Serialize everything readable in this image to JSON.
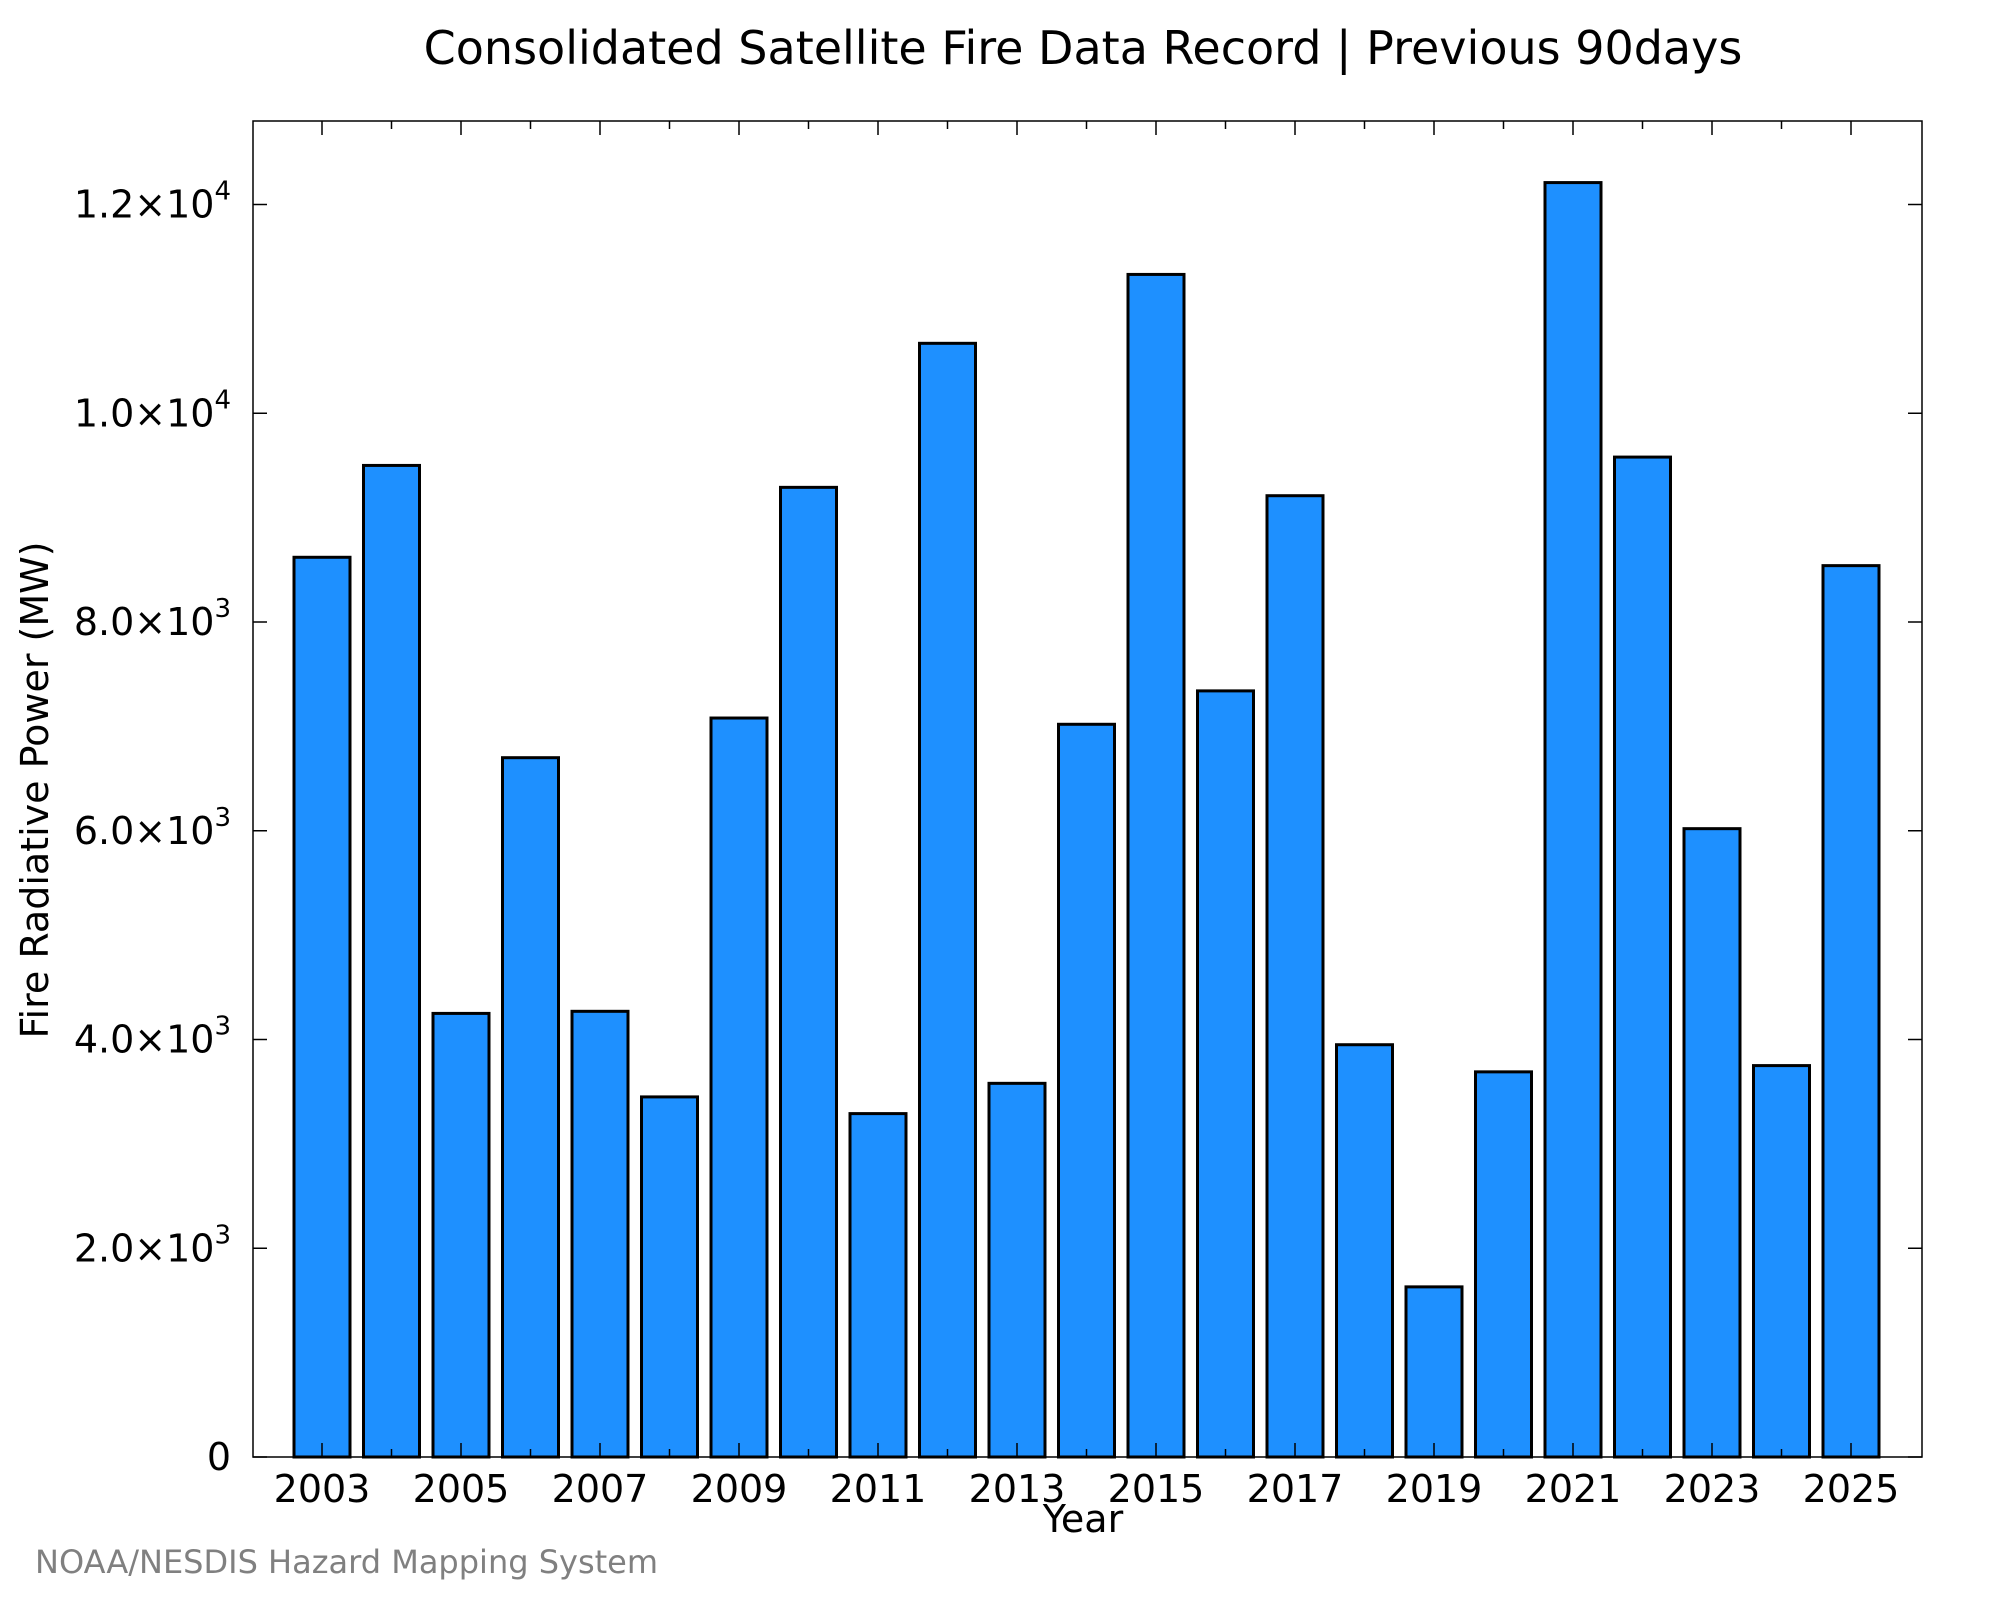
{
  "chart_data": {
    "type": "bar",
    "title": "Consolidated Satellite Fire Data Record | Previous 90days",
    "xlabel": "Year",
    "ylabel": "Fire Radiative Power (MW)",
    "categories": [
      "2003",
      "2004",
      "2005",
      "2006",
      "2007",
      "2008",
      "2009",
      "2010",
      "2011",
      "2012",
      "2013",
      "2014",
      "2015",
      "2016",
      "2017",
      "2018",
      "2019",
      "2020",
      "2021",
      "2022",
      "2023",
      "2024",
      "2025"
    ],
    "values": [
      8620,
      9500,
      4250,
      6700,
      4270,
      3450,
      7080,
      9290,
      3290,
      10670,
      3580,
      7020,
      11330,
      7340,
      9210,
      3950,
      1630,
      3690,
      12210,
      9580,
      6020,
      3750,
      8540
    ],
    "ylim": [
      0,
      12800
    ],
    "yticks": [
      {
        "value": 0,
        "mantissa": "0",
        "exp": ""
      },
      {
        "value": 2000,
        "mantissa": "2.0×10",
        "exp": "3"
      },
      {
        "value": 4000,
        "mantissa": "4.0×10",
        "exp": "3"
      },
      {
        "value": 6000,
        "mantissa": "6.0×10",
        "exp": "3"
      },
      {
        "value": 8000,
        "mantissa": "8.0×10",
        "exp": "3"
      },
      {
        "value": 10000,
        "mantissa": "1.0×10",
        "exp": "4"
      },
      {
        "value": 12000,
        "mantissa": "1.2×10",
        "exp": "4"
      }
    ],
    "xtick_labels": [
      "2003",
      "2005",
      "2007",
      "2009",
      "2011",
      "2013",
      "2015",
      "2017",
      "2019",
      "2021",
      "2023",
      "2025"
    ],
    "bar_color": "#1e90ff",
    "edge_color": "#000000",
    "grid": false,
    "legend": "none"
  },
  "credit": "NOAA/NESDIS Hazard Mapping System"
}
